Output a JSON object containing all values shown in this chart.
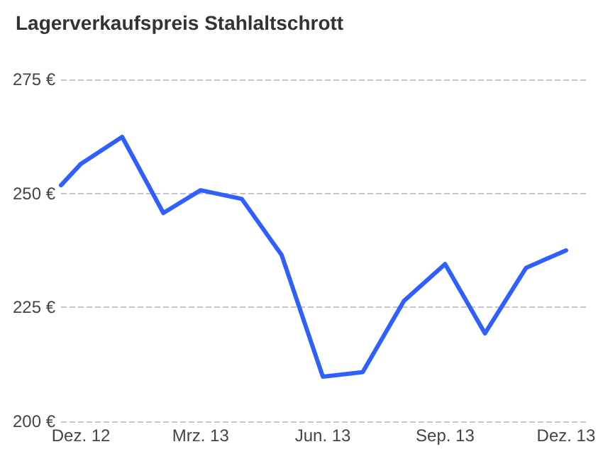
{
  "chart_data": {
    "type": "line",
    "title": "Lagerverkaufspreis Stahlaltschrott",
    "x": [
      "2012-11-16",
      "2012-12",
      "2013-01",
      "2013-02",
      "2013-03",
      "2013-04",
      "2013-05",
      "2013-06",
      "2013-07",
      "2013-08",
      "2013-09",
      "2013-10",
      "2013-11",
      "2013-12"
    ],
    "series": [
      {
        "color": "#2f5fff",
        "values": [
          251.8,
          256.5,
          262.4,
          245.7,
          250.7,
          248.8,
          236.5,
          209.8,
          210.8,
          226.4,
          234.5,
          219.3,
          233.7,
          237.5
        ]
      }
    ],
    "xlim": [
      "2012-11-16",
      "2013-12-16"
    ],
    "xticks": [
      {
        "value": "2012-12",
        "label": "Dez. 12"
      },
      {
        "value": "2013-03",
        "label": "Mrz. 13"
      },
      {
        "value": "2013-06",
        "label": "Jun. 13"
      },
      {
        "value": "2013-09",
        "label": "Sep. 13"
      },
      {
        "value": "2013-12",
        "label": "Dez. 13"
      }
    ],
    "ylim": [
      200,
      275
    ],
    "yticks": [
      {
        "value": 200,
        "label": "200 €"
      },
      {
        "value": 225,
        "label": "225 €"
      },
      {
        "value": 250,
        "label": "250 €"
      },
      {
        "value": 275,
        "label": "275 €"
      }
    ],
    "grid": "y",
    "marker": "none",
    "line_style": "solid"
  }
}
